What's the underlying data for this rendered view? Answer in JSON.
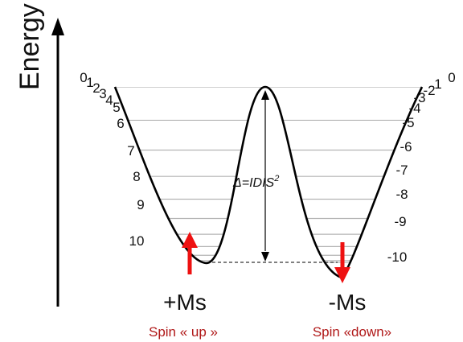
{
  "axis": {
    "label": "Energy"
  },
  "barrier": {
    "label": "Δ=IDIS²",
    "label_main": "Δ=IDIS",
    "label_sup": "2"
  },
  "left_well": {
    "label": "+Ms",
    "spin_label": "Spin « up »",
    "arrow": "up-arrow-icon",
    "levels": [
      "0",
      "1",
      "2",
      "3",
      "4",
      "5",
      "6",
      "7",
      "8",
      "9",
      "10"
    ]
  },
  "right_well": {
    "label": "-Ms",
    "spin_label": "Spin «down»",
    "arrow": "down-arrow-icon",
    "levels": [
      "0",
      "1",
      "-2",
      "-3",
      "-4",
      "-5",
      "-6",
      "-7",
      "-8",
      "-9",
      "-10"
    ]
  },
  "colors": {
    "arrow": "#ee1111",
    "spin_text": "#b01818",
    "curve": "#000000",
    "level_lines": "#b4b4b4"
  }
}
